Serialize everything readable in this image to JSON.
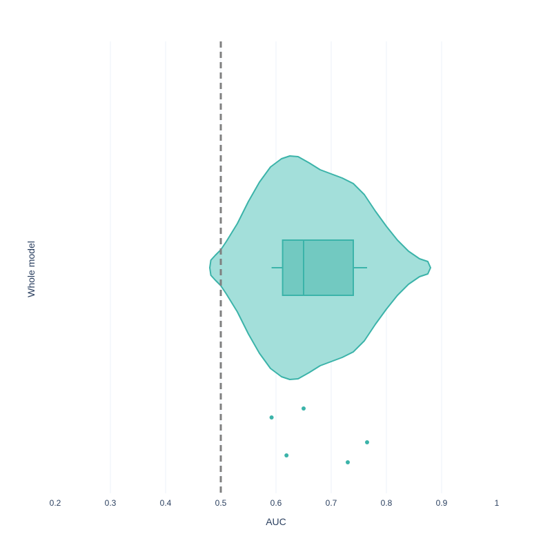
{
  "chart_data": {
    "type": "violin",
    "orientation": "horizontal",
    "xlabel": "AUC",
    "ylabel": "Whole model",
    "xlim": [
      0.2,
      1.0
    ],
    "x_ticks": [
      "0.2",
      "0.3",
      "0.4",
      "0.5",
      "0.6",
      "0.7",
      "0.8",
      "0.9",
      "1"
    ],
    "grid": true,
    "reference_line": {
      "x": 0.5,
      "style": "dashed",
      "color": "#808080"
    },
    "color": "#3bb3a9",
    "fill_color": "#a3dfda",
    "violin_extent": [
      0.48,
      0.88
    ],
    "box": {
      "q1": 0.612,
      "median": 0.65,
      "q3": 0.74,
      "whisker_low": 0.592,
      "whisker_high": 0.765
    },
    "points": [
      0.592,
      0.65,
      0.765,
      0.619,
      0.73
    ]
  }
}
